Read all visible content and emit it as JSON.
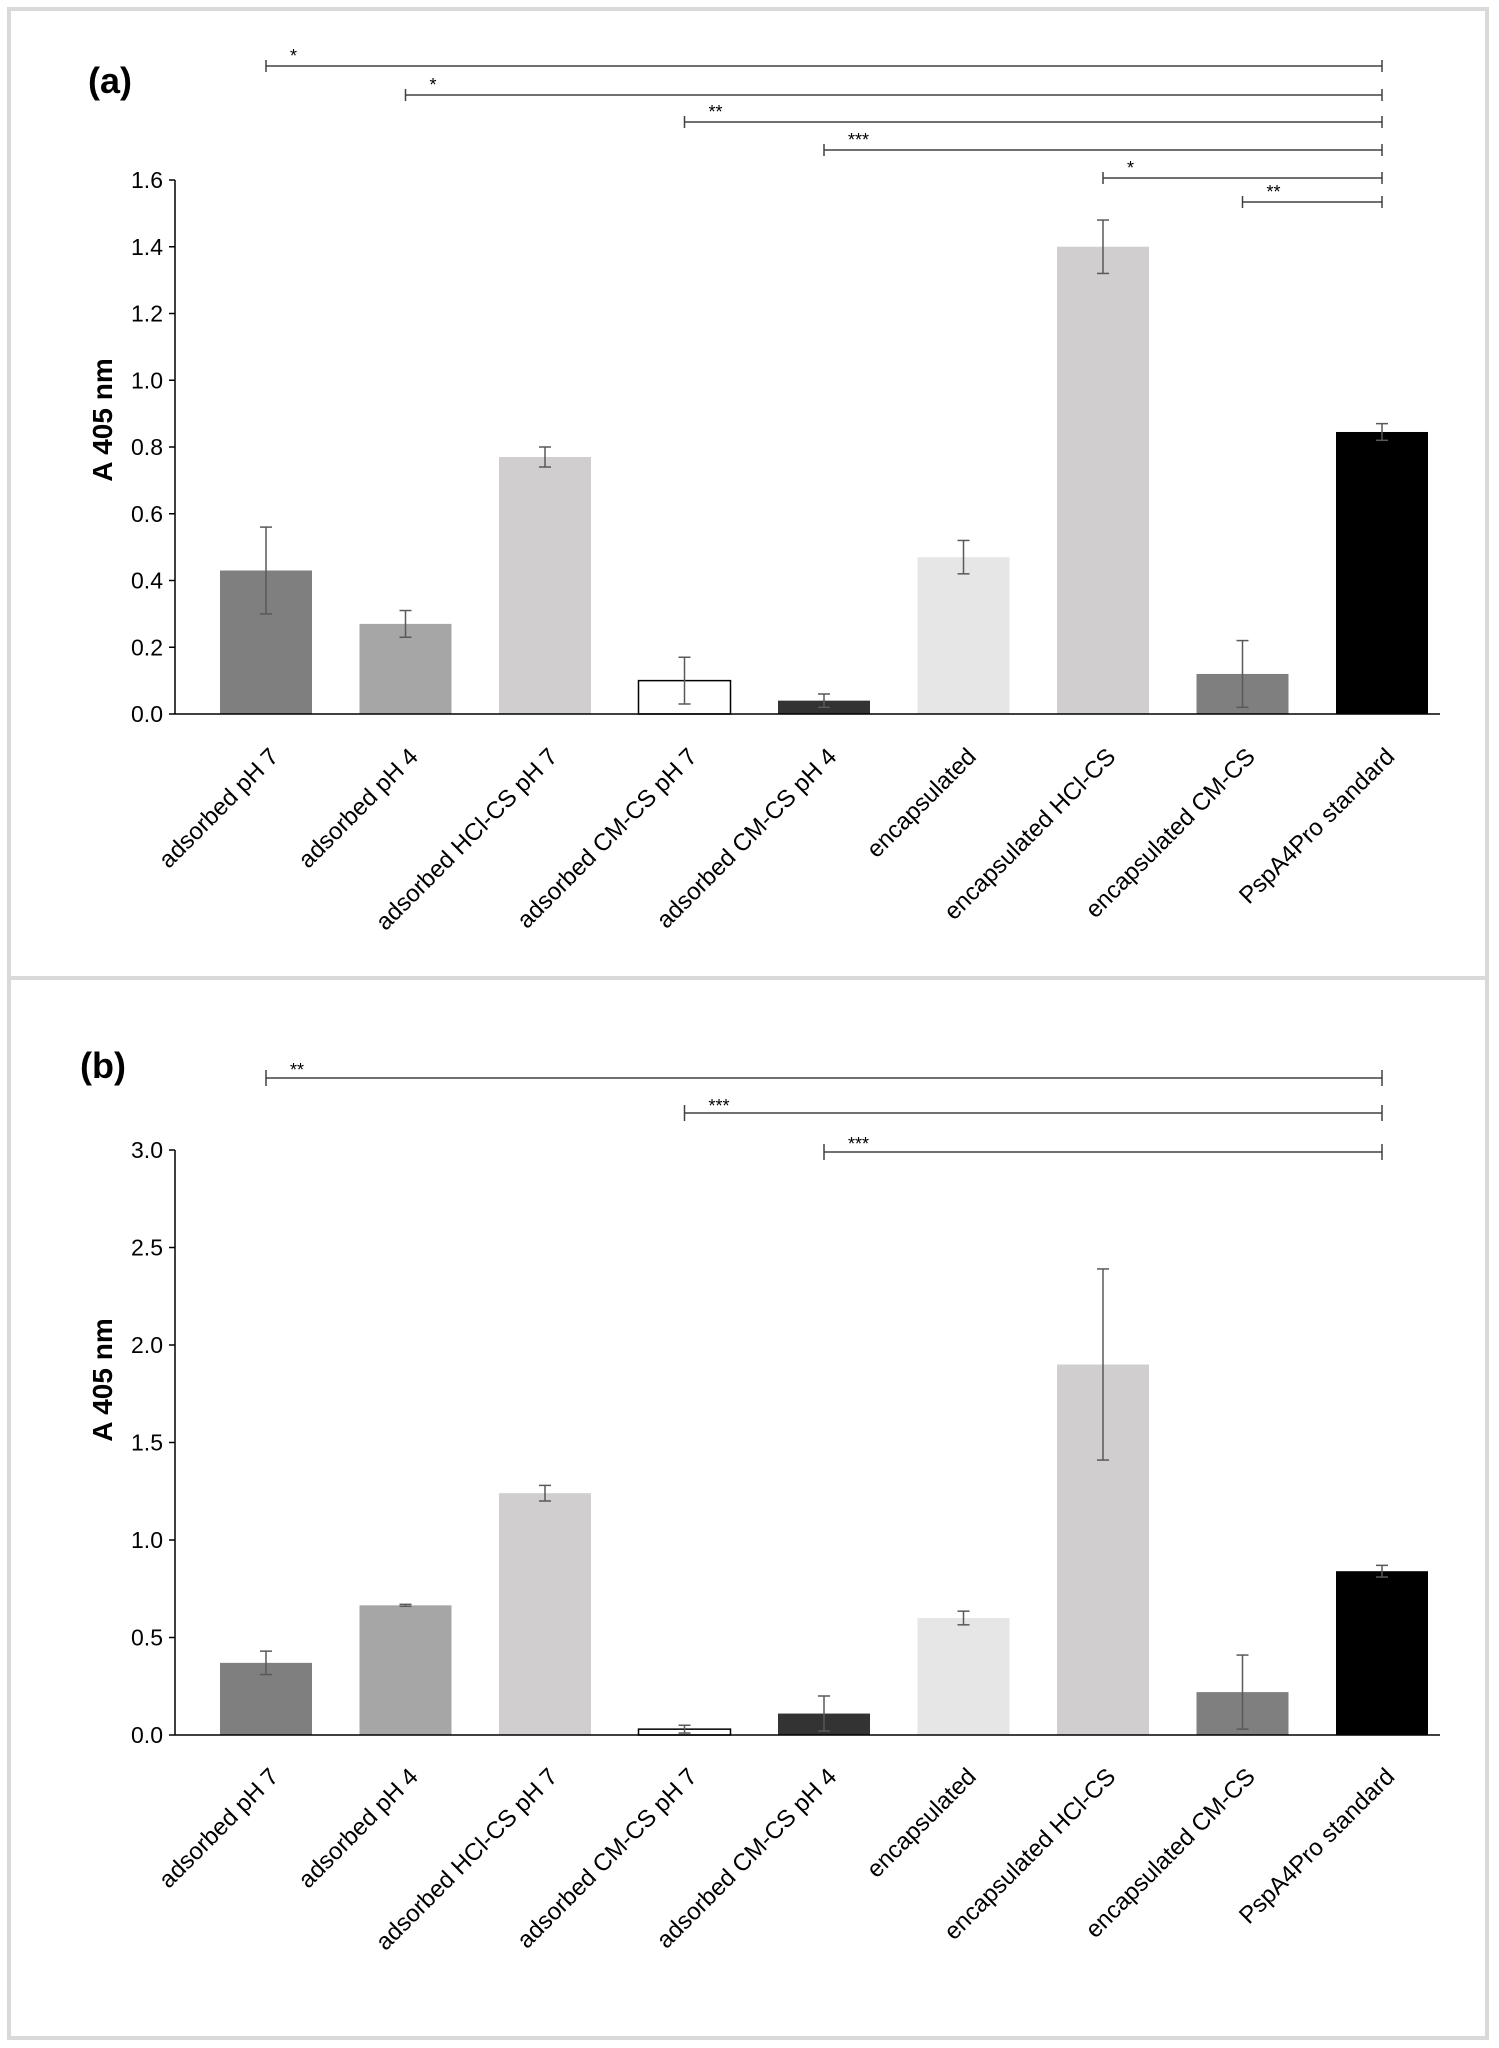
{
  "chart_data": [
    {
      "type": "bar",
      "panel_label": "(a)",
      "ylabel": "A 405 nm",
      "ylim": [
        0,
        1.6
      ],
      "yticks": [
        "0.0",
        "0.2",
        "0.4",
        "0.6",
        "0.8",
        "1.0",
        "1.2",
        "1.4",
        "1.6"
      ],
      "grid": false,
      "categories": [
        "adsorbed pH 7",
        "adsorbed pH 4",
        "adsorbed HCl-CS pH 7",
        "adsorbed CM-CS pH 7",
        "adsorbed CM-CS pH 4",
        "encapsulated",
        "encapsulated HCl-CS",
        "encapsulated CM-CS",
        "PspA4Pro standard"
      ],
      "values": [
        0.43,
        0.27,
        0.77,
        0.1,
        0.04,
        0.47,
        1.4,
        0.12,
        0.845
      ],
      "errors": [
        0.13,
        0.04,
        0.03,
        0.07,
        0.02,
        0.05,
        0.08,
        0.1,
        0.025
      ],
      "colors": [
        "#7f7f7f",
        "#a6a6a6",
        "#d0cece",
        "#ffffff",
        "#333333",
        "#e7e6e6",
        "#d0cece",
        "#7f7f7f",
        "#000000"
      ],
      "significance": [
        {
          "from": "adsorbed pH 7",
          "to": "PspA4Pro standard",
          "label": "*"
        },
        {
          "from": "adsorbed pH 4",
          "to": "PspA4Pro standard",
          "label": "*"
        },
        {
          "from": "adsorbed CM-CS pH 7",
          "to": "PspA4Pro standard",
          "label": "**"
        },
        {
          "from": "adsorbed CM-CS pH 4",
          "to": "PspA4Pro standard",
          "label": "***"
        },
        {
          "from": "encapsulated HCl-CS",
          "to": "PspA4Pro standard",
          "label": "*"
        },
        {
          "from": "encapsulated CM-CS",
          "to": "PspA4Pro standard",
          "label": "**"
        }
      ]
    },
    {
      "type": "bar",
      "panel_label": "(b)",
      "ylabel": "A 405 nm",
      "ylim": [
        0,
        3.0
      ],
      "yticks": [
        "0.0",
        "0.5",
        "1.0",
        "1.5",
        "2.0",
        "2.5",
        "3.0"
      ],
      "grid": false,
      "categories": [
        "adsorbed pH 7",
        "adsorbed pH 4",
        "adsorbed HCl-CS pH 7",
        "adsorbed CM-CS pH 7",
        "adsorbed CM-CS pH 4",
        "encapsulated",
        "encapsulated HCl-CS",
        "encapsulated CM-CS",
        "PspA4Pro standard"
      ],
      "values": [
        0.37,
        0.665,
        1.24,
        0.03,
        0.11,
        0.6,
        1.9,
        0.22,
        0.84
      ],
      "errors": [
        0.06,
        0.005,
        0.04,
        0.02,
        0.09,
        0.035,
        0.49,
        0.19,
        0.03
      ],
      "colors": [
        "#7f7f7f",
        "#a6a6a6",
        "#d0cece",
        "#ffffff",
        "#333333",
        "#e7e6e6",
        "#d0cece",
        "#7f7f7f",
        "#000000"
      ],
      "significance": [
        {
          "from": "adsorbed pH 7",
          "to": "PspA4Pro standard",
          "label": "**"
        },
        {
          "from": "adsorbed CM-CS pH 7",
          "to": "PspA4Pro standard",
          "label": "***"
        },
        {
          "from": "adsorbed CM-CS pH 4",
          "to": "PspA4Pro standard",
          "label": "***"
        }
      ]
    }
  ]
}
